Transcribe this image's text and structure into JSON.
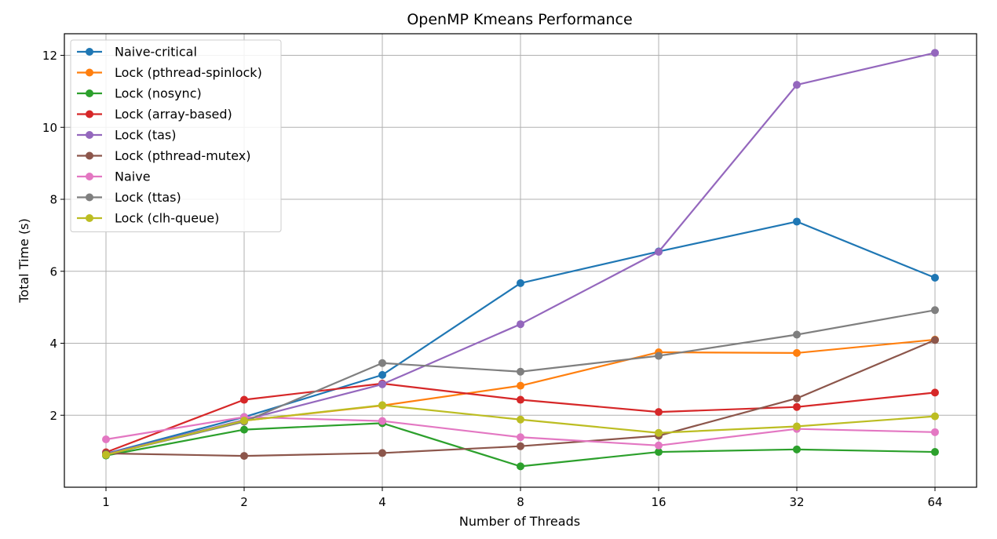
{
  "chart_data": {
    "type": "line",
    "title": "OpenMP Kmeans Performance",
    "xlabel": "Number of Threads",
    "ylabel": "Total Time (s)",
    "categories": [
      "1",
      "2",
      "4",
      "8",
      "16",
      "32",
      "64"
    ],
    "ylim": [
      0,
      12.6
    ],
    "yticks": [
      2,
      4,
      6,
      8,
      10,
      12
    ],
    "grid": true,
    "legend_position": "top-left",
    "series": [
      {
        "name": "Naive-critical",
        "color": "#1f77b4",
        "values": [
          0.93,
          1.95,
          3.12,
          5.67,
          6.55,
          7.38,
          5.82
        ]
      },
      {
        "name": "Lock (pthread-spinlock)",
        "color": "#ff7f0e",
        "values": [
          0.92,
          1.85,
          2.27,
          2.82,
          3.75,
          3.73,
          4.1
        ]
      },
      {
        "name": "Lock (nosync)",
        "color": "#2ca02c",
        "values": [
          0.88,
          1.6,
          1.78,
          0.58,
          0.98,
          1.05,
          0.98
        ]
      },
      {
        "name": "Lock (array-based)",
        "color": "#d62728",
        "values": [
          0.97,
          2.43,
          2.88,
          2.43,
          2.09,
          2.23,
          2.63
        ]
      },
      {
        "name": "Lock (tas)",
        "color": "#9467bd",
        "values": [
          0.92,
          1.87,
          2.86,
          4.53,
          6.54,
          11.18,
          12.07
        ]
      },
      {
        "name": "Lock (pthread-mutex)",
        "color": "#8c564b",
        "values": [
          0.94,
          0.87,
          0.95,
          1.14,
          1.43,
          2.47,
          4.09
        ]
      },
      {
        "name": "Naive",
        "color": "#e377c2",
        "values": [
          1.33,
          1.95,
          1.84,
          1.39,
          1.16,
          1.62,
          1.53
        ]
      },
      {
        "name": "Lock (ttas)",
        "color": "#7f7f7f",
        "values": [
          0.9,
          1.82,
          3.45,
          3.21,
          3.65,
          4.24,
          4.92
        ]
      },
      {
        "name": "Lock (clh-queue)",
        "color": "#bcbd22",
        "values": [
          0.9,
          1.85,
          2.28,
          1.88,
          1.51,
          1.69,
          1.97
        ]
      }
    ]
  }
}
